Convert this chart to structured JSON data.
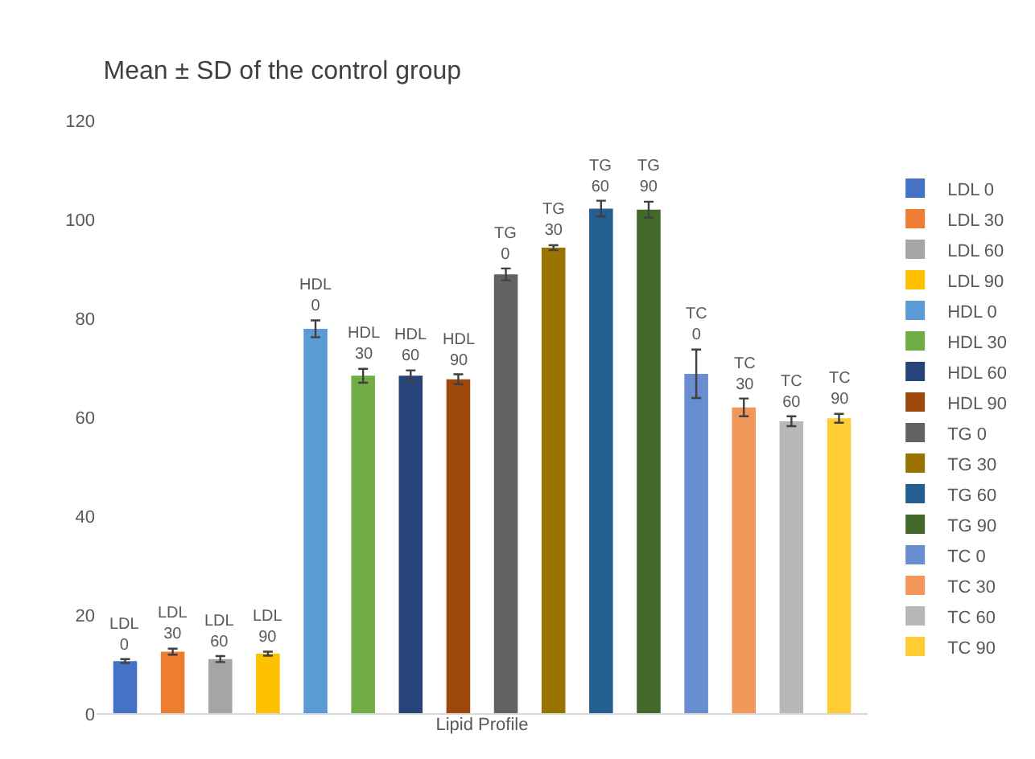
{
  "chart_data": {
    "type": "bar",
    "title": "Mean ± SD of the control group",
    "xlabel": "Lipid Profile",
    "categories": [
      null,
      null,
      null,
      null,
      null,
      null,
      null,
      null,
      null,
      null,
      null,
      null,
      null,
      null,
      null,
      null
    ],
    "ylim": [
      0,
      120
    ],
    "yticks": [
      0,
      20,
      40,
      60,
      80,
      100,
      120
    ],
    "grid": false,
    "legend": "right",
    "tick_labels": "y",
    "series": [
      {
        "name": "LDL 0",
        "color": "#4472c4",
        "values": [
          10.7,
          null,
          null,
          null,
          null,
          null,
          null,
          null,
          null,
          null,
          null,
          null,
          null,
          null,
          null,
          null
        ],
        "errors": [
          0.4,
          null,
          null,
          null,
          null,
          null,
          null,
          null,
          null,
          null,
          null,
          null,
          null,
          null,
          null,
          null
        ]
      },
      {
        "name": "LDL 30",
        "color": "#ed7d31",
        "values": [
          null,
          12.6,
          null,
          null,
          null,
          null,
          null,
          null,
          null,
          null,
          null,
          null,
          null,
          null,
          null,
          null
        ],
        "errors": [
          null,
          0.6,
          null,
          null,
          null,
          null,
          null,
          null,
          null,
          null,
          null,
          null,
          null,
          null,
          null,
          null
        ]
      },
      {
        "name": "LDL 60",
        "color": "#a5a5a5",
        "values": [
          null,
          null,
          11.1,
          null,
          null,
          null,
          null,
          null,
          null,
          null,
          null,
          null,
          null,
          null,
          null,
          null
        ],
        "errors": [
          null,
          null,
          0.6,
          null,
          null,
          null,
          null,
          null,
          null,
          null,
          null,
          null,
          null,
          null,
          null,
          null
        ]
      },
      {
        "name": "LDL 90",
        "color": "#ffc000",
        "values": [
          null,
          null,
          null,
          12.2,
          null,
          null,
          null,
          null,
          null,
          null,
          null,
          null,
          null,
          null,
          null,
          null
        ],
        "errors": [
          null,
          null,
          null,
          0.4,
          null,
          null,
          null,
          null,
          null,
          null,
          null,
          null,
          null,
          null,
          null,
          null
        ]
      },
      {
        "name": "HDL 0",
        "color": "#5b9bd5",
        "values": [
          null,
          null,
          null,
          null,
          77.9,
          null,
          null,
          null,
          null,
          null,
          null,
          null,
          null,
          null,
          null,
          null
        ],
        "errors": [
          null,
          null,
          null,
          null,
          1.7,
          null,
          null,
          null,
          null,
          null,
          null,
          null,
          null,
          null,
          null,
          null
        ]
      },
      {
        "name": "HDL 30",
        "color": "#70ad47",
        "values": [
          null,
          null,
          null,
          null,
          null,
          68.4,
          null,
          null,
          null,
          null,
          null,
          null,
          null,
          null,
          null,
          null
        ],
        "errors": [
          null,
          null,
          null,
          null,
          null,
          1.4,
          null,
          null,
          null,
          null,
          null,
          null,
          null,
          null,
          null,
          null
        ]
      },
      {
        "name": "HDL 60",
        "color": "#264478",
        "values": [
          null,
          null,
          null,
          null,
          null,
          null,
          68.4,
          null,
          null,
          null,
          null,
          null,
          null,
          null,
          null,
          null
        ],
        "errors": [
          null,
          null,
          null,
          null,
          null,
          null,
          1.1,
          null,
          null,
          null,
          null,
          null,
          null,
          null,
          null,
          null
        ]
      },
      {
        "name": "HDL 90",
        "color": "#9e480e",
        "values": [
          null,
          null,
          null,
          null,
          null,
          null,
          null,
          67.7,
          null,
          null,
          null,
          null,
          null,
          null,
          null,
          null
        ],
        "errors": [
          null,
          null,
          null,
          null,
          null,
          null,
          null,
          1.0,
          null,
          null,
          null,
          null,
          null,
          null,
          null,
          null
        ]
      },
      {
        "name": "TG 0",
        "color": "#636363",
        "values": [
          null,
          null,
          null,
          null,
          null,
          null,
          null,
          null,
          88.9,
          null,
          null,
          null,
          null,
          null,
          null,
          null
        ],
        "errors": [
          null,
          null,
          null,
          null,
          null,
          null,
          null,
          null,
          1.2,
          null,
          null,
          null,
          null,
          null,
          null,
          null
        ]
      },
      {
        "name": "TG 30",
        "color": "#997300",
        "values": [
          null,
          null,
          null,
          null,
          null,
          null,
          null,
          null,
          null,
          94.3,
          null,
          null,
          null,
          null,
          null,
          null
        ],
        "errors": [
          null,
          null,
          null,
          null,
          null,
          null,
          null,
          null,
          null,
          0.5,
          null,
          null,
          null,
          null,
          null,
          null
        ]
      },
      {
        "name": "TG 60",
        "color": "#255e91",
        "values": [
          null,
          null,
          null,
          null,
          null,
          null,
          null,
          null,
          null,
          null,
          102.2,
          null,
          null,
          null,
          null,
          null
        ],
        "errors": [
          null,
          null,
          null,
          null,
          null,
          null,
          null,
          null,
          null,
          null,
          1.6,
          null,
          null,
          null,
          null,
          null
        ]
      },
      {
        "name": "TG 90",
        "color": "#43682b",
        "values": [
          null,
          null,
          null,
          null,
          null,
          null,
          null,
          null,
          null,
          null,
          null,
          102.0,
          null,
          null,
          null,
          null
        ],
        "errors": [
          null,
          null,
          null,
          null,
          null,
          null,
          null,
          null,
          null,
          null,
          null,
          1.6,
          null,
          null,
          null,
          null
        ]
      },
      {
        "name": "TC 0",
        "color": "#698ed0",
        "values": [
          null,
          null,
          null,
          null,
          null,
          null,
          null,
          null,
          null,
          null,
          null,
          null,
          68.8,
          null,
          null,
          null
        ],
        "errors": [
          null,
          null,
          null,
          null,
          null,
          null,
          null,
          null,
          null,
          null,
          null,
          null,
          4.9,
          null,
          null,
          null
        ]
      },
      {
        "name": "TC 30",
        "color": "#f1975a",
        "values": [
          null,
          null,
          null,
          null,
          null,
          null,
          null,
          null,
          null,
          null,
          null,
          null,
          null,
          62.0,
          null,
          null
        ],
        "errors": [
          null,
          null,
          null,
          null,
          null,
          null,
          null,
          null,
          null,
          null,
          null,
          null,
          null,
          1.8,
          null,
          null
        ]
      },
      {
        "name": "TC 60",
        "color": "#b7b7b7",
        "values": [
          null,
          null,
          null,
          null,
          null,
          null,
          null,
          null,
          null,
          null,
          null,
          null,
          null,
          null,
          59.2,
          null
        ],
        "errors": [
          null,
          null,
          null,
          null,
          null,
          null,
          null,
          null,
          null,
          null,
          null,
          null,
          null,
          null,
          1.0,
          null
        ]
      },
      {
        "name": "TC 90",
        "color": "#ffcd33",
        "values": [
          null,
          null,
          null,
          null,
          null,
          null,
          null,
          null,
          null,
          null,
          null,
          null,
          null,
          null,
          null,
          59.8
        ],
        "errors": [
          null,
          null,
          null,
          null,
          null,
          null,
          null,
          null,
          null,
          null,
          null,
          null,
          null,
          null,
          null,
          0.9
        ]
      }
    ]
  }
}
